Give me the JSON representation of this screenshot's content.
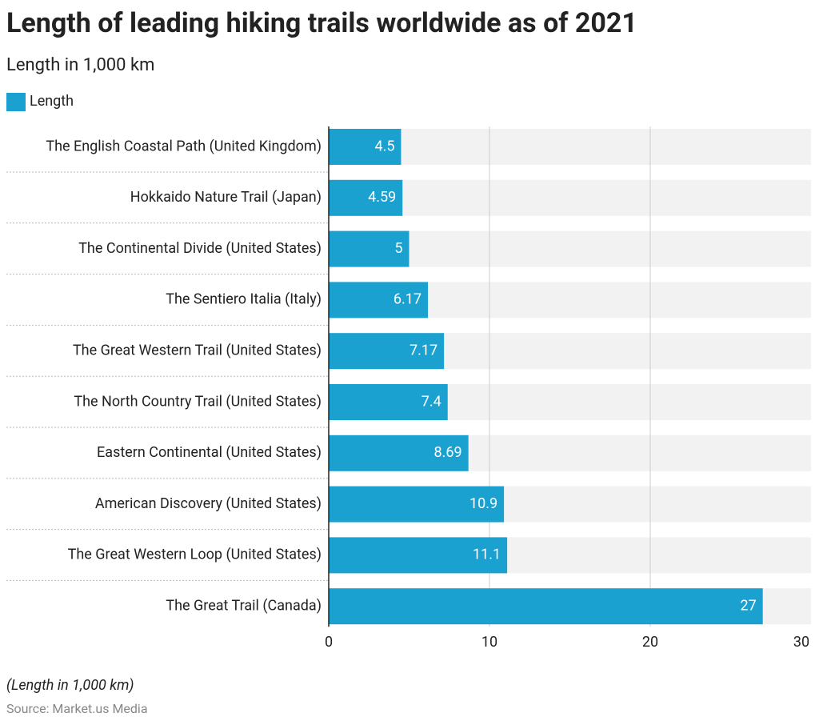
{
  "chart_data": {
    "type": "bar",
    "orientation": "horizontal",
    "title": "Length of leading hiking trails worldwide as of 2021",
    "subtitle": "Length in 1,000 km",
    "categories": [
      "The English Coastal Path (United Kingdom)",
      "Hokkaido Nature Trail (Japan)",
      "The Continental Divide (United States)",
      "The Sentiero Italia (Italy)",
      "The Great Western Trail (United States)",
      "The North Country Trail (United States)",
      "Eastern Continental (United States)",
      "American Discovery (United States)",
      "The Great Western Loop (United States)",
      "The Great Trail (Canada)"
    ],
    "series": [
      {
        "name": "Length",
        "color": "#1ba1cf",
        "values": [
          4.5,
          4.59,
          5,
          6.17,
          7.17,
          7.4,
          8.69,
          10.9,
          11.1,
          27
        ]
      }
    ],
    "xlim": [
      0,
      30
    ],
    "xticks": [
      0,
      10,
      20,
      30
    ],
    "grid": true,
    "note": "(Length in 1,000 km)",
    "source": "Source: Market.us Media"
  }
}
